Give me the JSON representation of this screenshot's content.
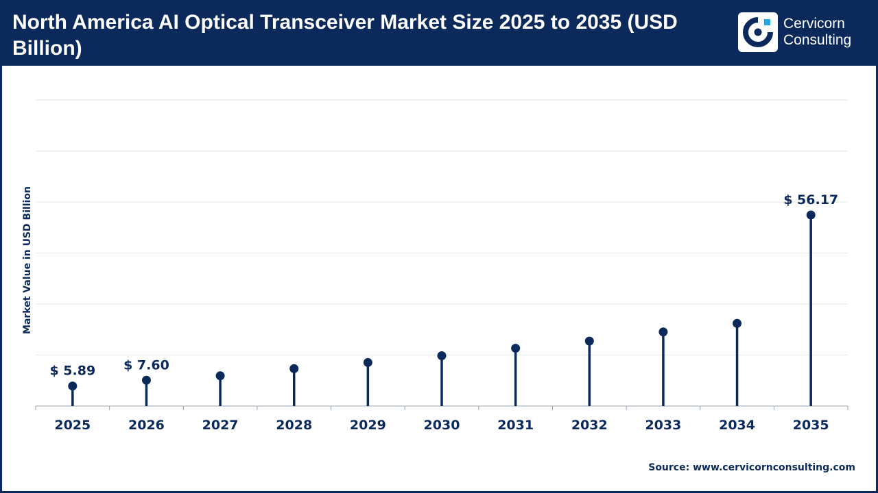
{
  "header": {
    "title": "North America AI Optical Transceiver Market Size 2025 to 2035 (USD Billion)",
    "logo_line1": "Cervicorn",
    "logo_line2": "Consulting"
  },
  "source_text": "Source: www.cervicornconsulting.com",
  "colors": {
    "header_bg": "#0b2a5b",
    "mark": "#0b2a5b",
    "grid": "#e3e6ea",
    "text": "#0b2a5b"
  },
  "chart_data": {
    "type": "lollipop",
    "title": "North America AI Optical Transceiver Market Size 2025 to 2035 (USD Billion)",
    "xlabel": "",
    "ylabel": "Market Value in USD Billion",
    "ylim": [
      0,
      90
    ],
    "grid": true,
    "categories": [
      "2025",
      "2026",
      "2027",
      "2028",
      "2029",
      "2030",
      "2031",
      "2032",
      "2033",
      "2034",
      "2035"
    ],
    "series": [
      {
        "values": [
          5.89,
          7.6,
          8.9,
          11.0,
          12.8,
          14.8,
          17.0,
          19.1,
          21.8,
          24.3,
          56.17
        ],
        "labels": [
          "$ 5.89",
          "$ 7.60",
          "",
          "",
          "",
          "",
          "",
          "",
          "",
          "",
          "$ 56.17"
        ]
      }
    ]
  }
}
